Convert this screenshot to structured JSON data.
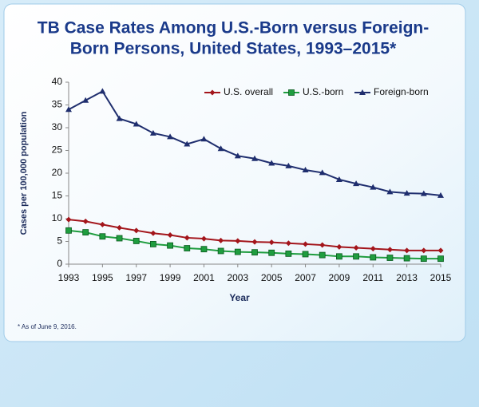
{
  "chart_data": {
    "type": "line",
    "title": "TB Case Rates Among U.S.-Born versus Foreign-Born Persons, United States, 1993–2015*",
    "title_lines": [
      "TB Case Rates Among U.S.-Born versus Foreign-",
      "Born Persons, United States, 1993–2015*"
    ],
    "x_label": "Year",
    "y_label": "Cases per 100,000 population",
    "footnote": "* As of June 9, 2016.",
    "x": [
      1993,
      1994,
      1995,
      1996,
      1997,
      1998,
      1999,
      2000,
      2001,
      2002,
      2003,
      2004,
      2005,
      2006,
      2007,
      2008,
      2009,
      2010,
      2011,
      2012,
      2013,
      2014,
      2015
    ],
    "xlim": [
      1993,
      2015
    ],
    "xticks": [
      1993,
      1995,
      1997,
      1999,
      2001,
      2003,
      2005,
      2007,
      2009,
      2011,
      2013,
      2015
    ],
    "ylim": [
      0,
      40
    ],
    "yticks": [
      0,
      5,
      10,
      15,
      20,
      25,
      30,
      35,
      40
    ],
    "legend_position": "top-right",
    "series": [
      {
        "name": "U.S. overall",
        "color": "#a3151b",
        "marker": "diamond",
        "values": [
          9.8,
          9.4,
          8.7,
          8.0,
          7.4,
          6.8,
          6.4,
          5.8,
          5.6,
          5.2,
          5.1,
          4.9,
          4.8,
          4.6,
          4.4,
          4.2,
          3.8,
          3.6,
          3.4,
          3.2,
          3.0,
          3.0,
          3.0
        ]
      },
      {
        "name": "U.S.-born",
        "color": "#1f9d3f",
        "marker": "square",
        "values": [
          7.4,
          7.0,
          6.1,
          5.7,
          5.1,
          4.4,
          4.1,
          3.5,
          3.3,
          2.9,
          2.7,
          2.6,
          2.5,
          2.3,
          2.2,
          2.0,
          1.7,
          1.7,
          1.5,
          1.4,
          1.3,
          1.2,
          1.2
        ]
      },
      {
        "name": "Foreign-born",
        "color": "#1f2e6e",
        "marker": "triangle",
        "values": [
          34.0,
          36.0,
          38.0,
          32.0,
          30.8,
          28.8,
          28.0,
          26.4,
          27.5,
          25.4,
          23.8,
          23.2,
          22.2,
          21.6,
          20.7,
          20.1,
          18.6,
          17.7,
          16.9,
          15.9,
          15.6,
          15.5,
          15.1
        ]
      }
    ]
  }
}
